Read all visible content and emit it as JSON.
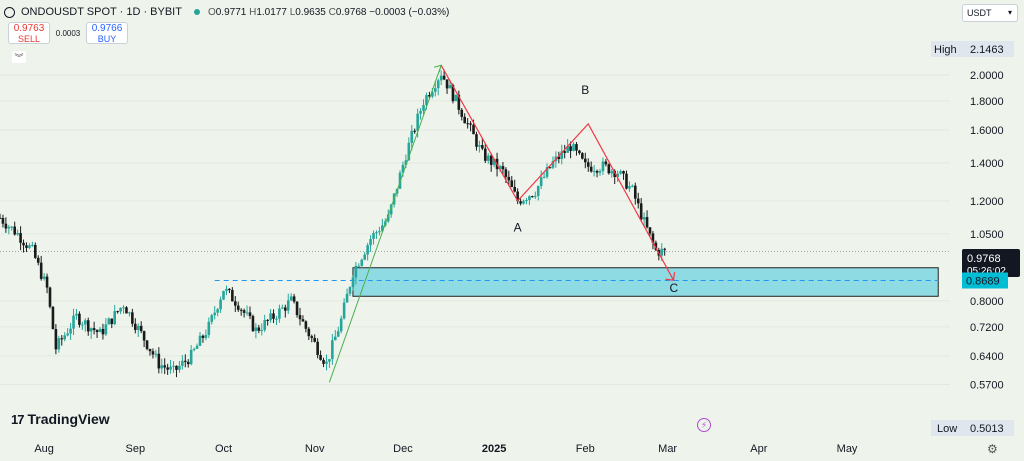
{
  "header": {
    "symbol": "ONDOUSDT SPOT · 1D · BYBIT",
    "open_label": "O",
    "open": "0.9771",
    "high_label": "H",
    "high": "1.0177",
    "low_label": "L",
    "low": "0.9635",
    "close_label": "C",
    "close": "0.9768",
    "change": "−0.0003 (−0.03%)"
  },
  "trade": {
    "sell_price": "0.9763",
    "sell_label": "SELL",
    "spread": "0.0003",
    "buy_price": "0.9766",
    "buy_label": "BUY"
  },
  "currency": "USDT",
  "brand": "TradingView",
  "colors": {
    "up": "#26a69a",
    "down": "#1a1a1a",
    "zone_fill": "#8fdbe3",
    "zone_border": "#222222",
    "impulse": "#4caf50",
    "correction": "#f23645",
    "support_dash": "#2196f3",
    "last_price_bg": "#131722",
    "level_bg": "#00bcd4"
  },
  "chart_data": {
    "type": "candlestick",
    "y_scale": "log",
    "ylim": [
      0.47,
      2.4
    ],
    "y_ticks": [
      "0.5700",
      "0.6400",
      "0.7200",
      "0.8000",
      "1.0500",
      "1.2000",
      "1.4000",
      "1.6000",
      "1.8000",
      "2.0000"
    ],
    "y_ticks_val": [
      0.57,
      0.64,
      0.72,
      0.8,
      1.05,
      1.2,
      1.4,
      1.6,
      1.8,
      2.0
    ],
    "x_ticks": [
      {
        "label": "Aug",
        "date": "2024-08-01"
      },
      {
        "label": "Sep",
        "date": "2024-09-01"
      },
      {
        "label": "Oct",
        "date": "2024-10-01"
      },
      {
        "label": "Nov",
        "date": "2024-11-01"
      },
      {
        "label": "Dec",
        "date": "2024-12-01"
      },
      {
        "label": "2025",
        "date": "2025-01-01"
      },
      {
        "label": "Feb",
        "date": "2025-02-01"
      },
      {
        "label": "Mar",
        "date": "2025-03-01"
      },
      {
        "label": "Apr",
        "date": "2025-04-01"
      },
      {
        "label": "May",
        "date": "2025-05-01"
      }
    ],
    "x_range": [
      "2024-07-17",
      "2025-06-05"
    ],
    "price_path": [
      [
        "2024-07-17",
        1.12
      ],
      [
        "2024-07-23",
        1.05
      ],
      [
        "2024-07-28",
        0.98
      ],
      [
        "2024-08-02",
        0.84
      ],
      [
        "2024-08-05",
        0.66
      ],
      [
        "2024-08-12",
        0.75
      ],
      [
        "2024-08-20",
        0.7
      ],
      [
        "2024-08-28",
        0.79
      ],
      [
        "2024-09-03",
        0.7
      ],
      [
        "2024-09-09",
        0.62
      ],
      [
        "2024-09-14",
        0.6
      ],
      [
        "2024-09-20",
        0.64
      ],
      [
        "2024-09-26",
        0.72
      ],
      [
        "2024-10-01",
        0.84
      ],
      [
        "2024-10-06",
        0.79
      ],
      [
        "2024-10-12",
        0.71
      ],
      [
        "2024-10-18",
        0.75
      ],
      [
        "2024-10-24",
        0.8
      ],
      [
        "2024-10-30",
        0.7
      ],
      [
        "2024-11-05",
        0.62
      ],
      [
        "2024-11-10",
        0.74
      ],
      [
        "2024-11-14",
        0.9
      ],
      [
        "2024-11-20",
        1.03
      ],
      [
        "2024-11-26",
        1.12
      ],
      [
        "2024-12-02",
        1.45
      ],
      [
        "2024-12-08",
        1.8
      ],
      [
        "2024-12-14",
        2.02
      ],
      [
        "2024-12-21",
        1.72
      ],
      [
        "2024-12-28",
        1.45
      ],
      [
        "2025-01-04",
        1.35
      ],
      [
        "2025-01-09",
        1.2
      ],
      [
        "2025-01-15",
        1.25
      ],
      [
        "2025-01-21",
        1.4
      ],
      [
        "2025-01-27",
        1.5
      ],
      [
        "2025-02-01",
        1.38
      ],
      [
        "2025-02-07",
        1.38
      ],
      [
        "2025-02-12",
        1.35
      ],
      [
        "2025-02-17",
        1.25
      ],
      [
        "2025-02-21",
        1.1
      ],
      [
        "2025-02-25",
        0.98
      ],
      [
        "2025-02-28",
        0.9768
      ]
    ],
    "current_price": "0.9768",
    "countdown": "05:26:02",
    "key_level": "0.8689",
    "key_level_val": 0.8689,
    "high_label": "High",
    "high_value": "2.1463",
    "low_label": "Low",
    "low_value": "0.5013",
    "demand_zone": {
      "from": "2024-11-14",
      "to": "2025-06-01",
      "low": 0.815,
      "high": 0.915
    },
    "support_line": {
      "from": "2024-09-28",
      "to": "2025-06-01",
      "value": 0.8689
    },
    "impulse_line": [
      [
        "2024-11-06",
        0.575
      ],
      [
        "2024-12-14",
        2.08
      ]
    ],
    "correction_line": [
      [
        "2024-12-14",
        2.08
      ],
      [
        "2025-01-09",
        1.2
      ],
      [
        "2025-02-02",
        1.64
      ],
      [
        "2025-03-03",
        0.87
      ]
    ],
    "wave_labels": [
      {
        "text": "A",
        "date": "2025-01-09",
        "value": 1.06
      },
      {
        "text": "B",
        "date": "2025-02-01",
        "value": 1.85
      },
      {
        "text": "C",
        "date": "2025-03-03",
        "value": 0.83
      }
    ]
  }
}
